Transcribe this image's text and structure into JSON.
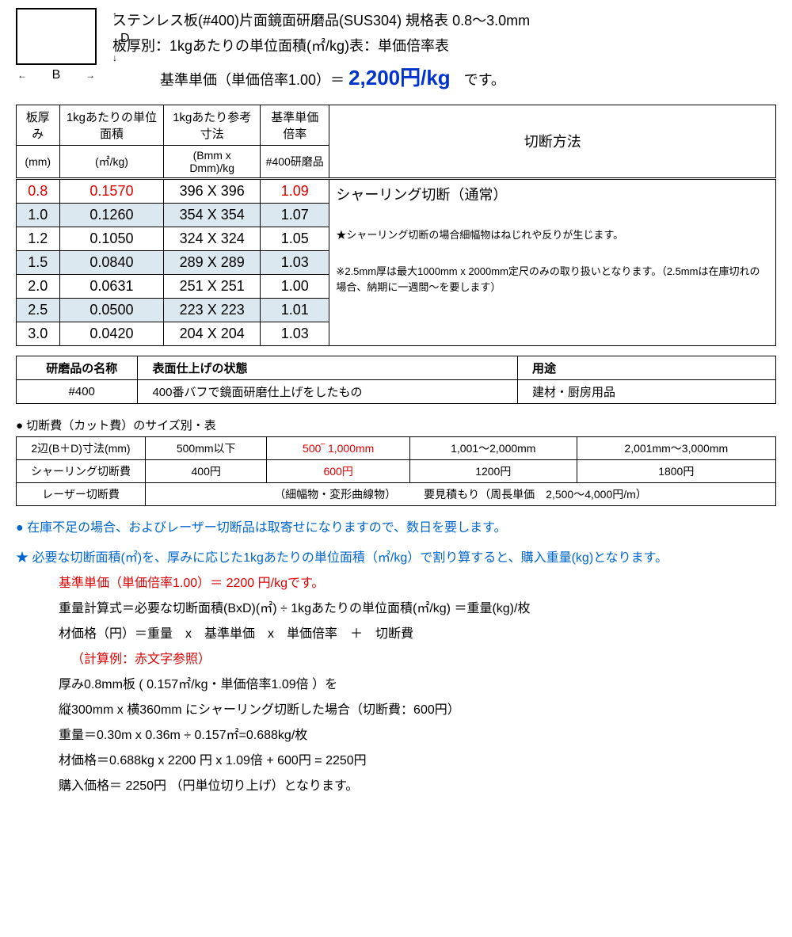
{
  "diagram": {
    "d_label": "D",
    "b_label": "B"
  },
  "header": {
    "line1": "ステンレス板(#400)片面鏡面研磨品(SUS304) 規格表  0.8〜3.0mm",
    "line2": "板厚別：1kgあたりの単位面積(㎡/kg)表：単価倍率表",
    "base_prefix": "基準単価（単価倍率1.00）＝",
    "base_price": "2,200円/kg",
    "base_suffix": "です。"
  },
  "main_table": {
    "head1": [
      "板厚み",
      "1kgあたりの単位面積",
      "1kgあたり参考寸法",
      "基準単価倍率",
      "切断方法"
    ],
    "head2": [
      "(mm)",
      "(㎡/kg)",
      "(Bmm x Dmm)/kg",
      "#400研磨品"
    ],
    "rows": [
      {
        "t": "0.8",
        "a": "0.1570",
        "d": "396 X 396",
        "r": "1.09",
        "red": true,
        "alt": false
      },
      {
        "t": "1.0",
        "a": "0.1260",
        "d": "354 X 354",
        "r": "1.07",
        "red": false,
        "alt": true
      },
      {
        "t": "1.2",
        "a": "0.1050",
        "d": "324 X 324",
        "r": "1.05",
        "red": false,
        "alt": false
      },
      {
        "t": "1.5",
        "a": "0.0840",
        "d": "289 X 289",
        "r": "1.03",
        "red": false,
        "alt": true
      },
      {
        "t": "2.0",
        "a": "0.0631",
        "d": "251 X 251",
        "r": "1.00",
        "red": false,
        "alt": false
      },
      {
        "t": "2.5",
        "a": "0.0500",
        "d": "223 X 223",
        "r": "1.01",
        "red": false,
        "alt": true
      },
      {
        "t": "3.0",
        "a": "0.0420",
        "d": "204 X 204",
        "r": "1.03",
        "red": false,
        "alt": false
      }
    ],
    "side_title": "シャーリング切断（通常）",
    "side_note1": "★シャーリング切断の場合細幅物はねじれや反りが生じます。",
    "side_note2": "※2.5mm厚は最大1000mm x 2000mm定尺のみの取り扱いとなります。（2.5mmは在庫切れの場合、納期に一週間〜を要します）"
  },
  "finish_table": {
    "headers": [
      "研磨品の名称",
      "表面仕上げの状態",
      "用途"
    ],
    "row": [
      "#400",
      "400番バフで鏡面研磨仕上げをしたもの",
      "建材・厨房用品"
    ]
  },
  "cut_section_label": "● 切断費（カット費）のサイズ別・表",
  "cut_table": {
    "r1": [
      "2辺(B＋D)寸法(mm)",
      "500mm以下",
      "500‾ 1,000mm",
      "1,001〜2,000mm",
      "2,001mm〜3,000mm"
    ],
    "r2": [
      "シャーリング切断費",
      "400円",
      "600円",
      "1200円",
      "1800円"
    ],
    "r3_label": "レーザー切断費",
    "r3_text": "（細幅物・変形曲線物）　　　要見積もり（周長単価　2,500〜4,000円/m）",
    "red_cols": [
      2
    ]
  },
  "notes": {
    "n1": "● 在庫不足の場合、およびレーザー切断品は取寄せになりますので、数日を要します。",
    "n2": "★ 必要な切断面積(㎡)を、厚みに応じた1kgあたりの単位面積（㎡/kg）で割り算すると、購入重量(kg)となります。",
    "n3": "基準単価（単価倍率1.00）＝ 2200 円/kgです。",
    "n4": "重量計算式＝必要な切断面積(BxD)(㎡) ÷ 1kgあたりの単位面積(㎡/kg) ＝重量(kg)/枚",
    "n5": "材価格（円）＝重量　x　基準単価　x　単価倍率　＋　切断費",
    "n6": "（計算例：赤文字参照）",
    "n7": "厚み0.8mm板 ( 0.157㎡/kg・単価倍率1.09倍 ）を",
    "n8": "縦300mm x 横360mm にシャーリング切断した場合（切断費：600円）",
    "n9": "重量＝0.30m x 0.36m ÷ 0.157㎡=0.688kg/枚",
    "n10": "材価格＝0.688kg x 2200 円 x 1.09倍 + 600円 = 2250円",
    "n11": "購入価格＝ 2250円 （円単位切り上げ）となります。"
  }
}
